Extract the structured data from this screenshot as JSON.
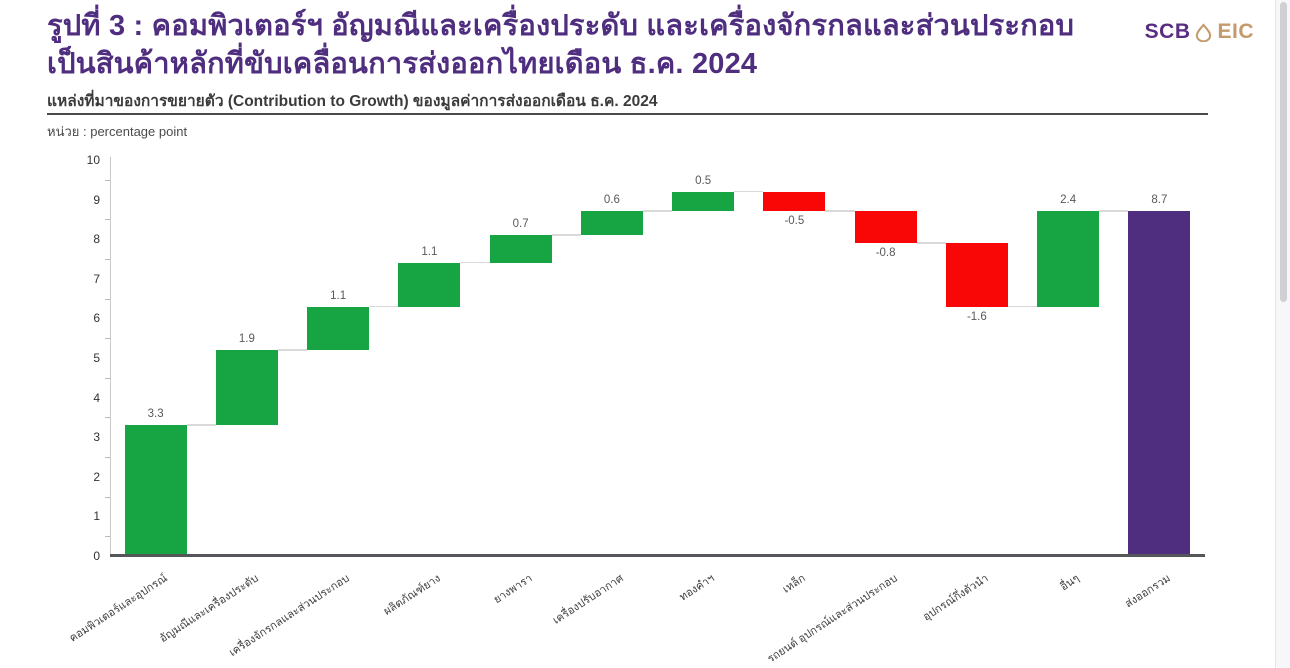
{
  "header": {
    "title_line1": "รูปที่ 3 : คอมพิวเตอร์ฯ อัญมณีและเครื่องประดับ และเครื่องจักรกลและส่วนประกอบ",
    "title_line2": "เป็นสินค้าหลักที่ขับเคลื่อนการส่งออกไทยเดือน ธ.ค. 2024",
    "logo": {
      "scb": "SCB",
      "eic": "EIC",
      "mark_color": "#C49A6C"
    }
  },
  "subtitle": "แหล่งที่มาของการขยายตัว (Contribution to Growth) ของมูลค่าการส่งออกเดือน ธ.ค. 2024",
  "unit_label": "หน่วย : percentage point",
  "chart_data": {
    "type": "bar",
    "subtype": "waterfall",
    "title": "Contribution to Growth ของมูลค่าการส่งออกเดือน ธ.ค. 2024",
    "xlabel": "",
    "ylabel": "percentage point",
    "ylim": [
      0,
      10
    ],
    "ytick_step": 1,
    "yticks": [
      0,
      1,
      2,
      3,
      4,
      5,
      6,
      7,
      8,
      9,
      10
    ],
    "grid": false,
    "legend": "none",
    "categories": [
      "คอมพิวเตอร์และอุปกรณ์",
      "อัญมณีและเครื่องประดับ",
      "เครื่องจักรกลและส่วนประกอบ",
      "ผลิตภัณฑ์ยาง",
      "ยางพารา",
      "เครื่องปรับอากาศ",
      "ทองคำฯ",
      "เหล็ก",
      "รถยนต์ อุปกรณ์และส่วนประกอบ",
      "อุปกรณ์กึ่งตัวนำ",
      "อื่นๆ",
      "ส่งออกรวม"
    ],
    "values": [
      3.3,
      1.9,
      1.1,
      1.1,
      0.7,
      0.6,
      0.5,
      -0.5,
      -0.8,
      -1.6,
      2.4,
      8.7
    ],
    "value_labels": [
      "3.3",
      "1.9",
      "1.1",
      "1.1",
      "0.7",
      "0.6",
      "0.5",
      "-0.5",
      "-0.8",
      "-1.6",
      "2.4",
      "8.7"
    ],
    "bar_roles": [
      "increase",
      "increase",
      "increase",
      "increase",
      "increase",
      "increase",
      "increase",
      "decrease",
      "decrease",
      "decrease",
      "increase",
      "total"
    ],
    "running_totals": [
      3.3,
      5.2,
      6.3,
      7.4,
      8.1,
      8.7,
      9.2,
      8.7,
      7.9,
      6.3,
      8.7,
      8.7
    ],
    "colors": {
      "increase": "#17A443",
      "decrease": "#F90606",
      "total": "#4F2D7F"
    }
  }
}
